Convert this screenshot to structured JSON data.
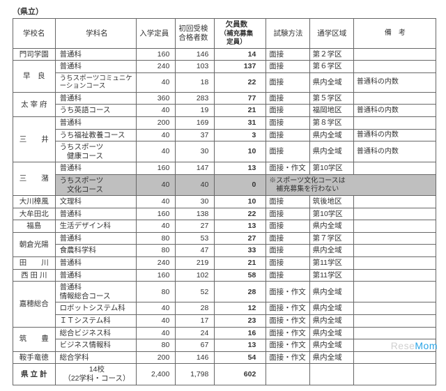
{
  "meta": {
    "category_label": "（県立）"
  },
  "headers": {
    "school": "学校名",
    "dept": "学科名",
    "capacity": "入学定員",
    "first_pass": "初回受検",
    "first_pass2": "合格者数",
    "vacancy": "欠員数",
    "vacancy_sub": "（補充募集定員）",
    "exam": "試験方法",
    "district": "通学区域",
    "remark": "備　考"
  },
  "rows": [
    {
      "school": "門司学園",
      "dept": "普通科",
      "cap": "160",
      "pass": "146",
      "vac": "14",
      "exam": "面接",
      "dist": "第２学区",
      "remark": "",
      "school_rowspan": 1
    },
    {
      "school": "早　良",
      "dept": "普通科",
      "cap": "240",
      "pass": "103",
      "vac": "137",
      "exam": "面接",
      "dist": "第６学区",
      "remark": "",
      "school_rowspan": 2
    },
    {
      "dept_html": "うちスポーツコミュニケーションコース",
      "dept_small": true,
      "cap": "40",
      "pass": "18",
      "vac": "22",
      "exam": "面接",
      "dist": "県内全域",
      "remark": "普通科の内数"
    },
    {
      "school": "太 宰 府",
      "dept": "普通科",
      "cap": "360",
      "pass": "283",
      "vac": "77",
      "exam": "面接",
      "dist": "第５学区",
      "remark": "",
      "school_rowspan": 2
    },
    {
      "dept": "うち英語コース",
      "cap": "40",
      "pass": "19",
      "vac": "21",
      "exam": "面接",
      "dist": "福岡地区",
      "remark": "普通科の内数"
    },
    {
      "school": "三　　井",
      "dept": "普通科",
      "cap": "200",
      "pass": "169",
      "vac": "31",
      "exam": "面接",
      "dist": "第８学区",
      "remark": "",
      "school_rowspan": 3
    },
    {
      "dept": "うち福祉教養コース",
      "cap": "40",
      "pass": "37",
      "vac": "3",
      "exam": "面接",
      "dist": "県内全域",
      "remark": "普通科の内数"
    },
    {
      "dept_html": "うちスポーツ<br>　健康コース",
      "cap": "40",
      "pass": "30",
      "vac": "10",
      "exam": "面接",
      "dist": "県内全域",
      "remark": "普通科の内数"
    },
    {
      "school": "三　　潴",
      "dept": "普通科",
      "cap": "160",
      "pass": "147",
      "vac": "13",
      "exam": "面接・作文",
      "dist": "第10学区",
      "remark": "",
      "school_rowspan": 2
    },
    {
      "dept_html": "うちスポーツ<br>　文化コース",
      "cap": "40",
      "pass": "40",
      "vac": "0",
      "exam": "",
      "dist_remark_merge": true,
      "remark": "※スポーツ文化コースは<br>　補充募集を行わない",
      "highlight": true
    },
    {
      "school": "大川樟風",
      "dept": "文理科",
      "cap": "40",
      "pass": "30",
      "vac": "10",
      "exam": "面接",
      "dist": "筑後地区",
      "remark": "",
      "school_rowspan": 1
    },
    {
      "school": "大牟田北",
      "dept": "普通科",
      "cap": "160",
      "pass": "138",
      "vac": "22",
      "exam": "面接",
      "dist": "第10学区",
      "remark": "",
      "school_rowspan": 1
    },
    {
      "school": "福島",
      "dept": "生活デザイン科",
      "cap": "40",
      "pass": "27",
      "vac": "13",
      "exam": "面接",
      "dist": "県内全域",
      "remark": "",
      "school_rowspan": 1
    },
    {
      "school": "朝倉光陽",
      "dept": "普通科",
      "cap": "80",
      "pass": "53",
      "vac": "27",
      "exam": "面接",
      "dist": "第７学区",
      "remark": "",
      "school_rowspan": 2
    },
    {
      "dept": "食農科学科",
      "cap": "80",
      "pass": "47",
      "vac": "33",
      "exam": "面接",
      "dist": "県内全域",
      "remark": ""
    },
    {
      "school": "田　　川",
      "dept": "普通科",
      "cap": "240",
      "pass": "219",
      "vac": "21",
      "exam": "面接",
      "dist": "第11学区",
      "remark": "",
      "school_rowspan": 1
    },
    {
      "school": "西 田 川",
      "dept": "普通科",
      "cap": "160",
      "pass": "102",
      "vac": "58",
      "exam": "面接",
      "dist": "第11学区",
      "remark": "",
      "school_rowspan": 1
    },
    {
      "school": "嘉穂総合",
      "dept_html": "普通科<br>情報総合コース",
      "cap": "80",
      "pass": "52",
      "vac": "28",
      "exam": "面接・作文",
      "dist": "県内全域",
      "remark": "",
      "school_rowspan": 3
    },
    {
      "dept": "ロボットシステム科",
      "cap": "40",
      "pass": "28",
      "vac": "12",
      "exam": "面接・作文",
      "dist": "県内全域",
      "remark": ""
    },
    {
      "dept": "ＩＴシステム科",
      "cap": "40",
      "pass": "17",
      "vac": "23",
      "exam": "面接・作文",
      "dist": "県内全域",
      "remark": ""
    },
    {
      "school": "筑　　豊",
      "dept": "総合ビジネス科",
      "cap": "40",
      "pass": "24",
      "vac": "16",
      "exam": "面接・作文",
      "dist": "県内全域",
      "remark": "",
      "school_rowspan": 2
    },
    {
      "dept": "ビジネス情報科",
      "cap": "80",
      "pass": "67",
      "vac": "13",
      "exam": "面接・作文",
      "dist": "県内全域",
      "remark": ""
    },
    {
      "school": "鞍手竜徳",
      "dept": "総合学科",
      "cap": "200",
      "pass": "146",
      "vac": "54",
      "exam": "面接・作文",
      "dist": "県内全域",
      "remark": "",
      "school_rowspan": 1
    }
  ],
  "total": {
    "school": "県 立 計",
    "dept_html": "14校<br>（22学科・コース）",
    "cap": "2,400",
    "pass": "1,798",
    "vac": "602",
    "exam": "",
    "dist": "",
    "remark": ""
  },
  "watermark": {
    "a": "Rese",
    "b": "Mom"
  }
}
